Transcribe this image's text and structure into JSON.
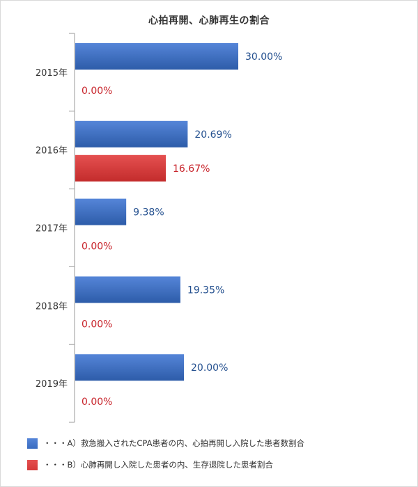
{
  "chart_data": {
    "type": "bar",
    "orientation": "horizontal",
    "title": "心拍再開、心肺再生の割合",
    "categories": [
      "2015年",
      "2016年",
      "2017年",
      "2018年",
      "2019年"
    ],
    "series": [
      {
        "name": "・・・A）救急搬入されたCPA患者の内、心拍再開し入院した患者数割合",
        "color": "#3a6cc0",
        "values": [
          30.0,
          20.69,
          9.38,
          19.35,
          20.0
        ],
        "labels": [
          "30.00%",
          "20.69%",
          "9.38%",
          "19.35%",
          "20.00%"
        ]
      },
      {
        "name": "・・・B）心肺再開し入院した患者の内、生存退院した患者割合",
        "color": "#d63a3a",
        "values": [
          0.0,
          16.67,
          0.0,
          0.0,
          0.0
        ],
        "labels": [
          "0.00%",
          "16.67%",
          "0.00%",
          "0.00%",
          "0.00%"
        ]
      }
    ],
    "xlim": [
      0,
      50
    ],
    "grid": false,
    "legend": "bottom-left",
    "label_colors": {
      "a": "#24508f",
      "b": "#c8242b"
    }
  }
}
